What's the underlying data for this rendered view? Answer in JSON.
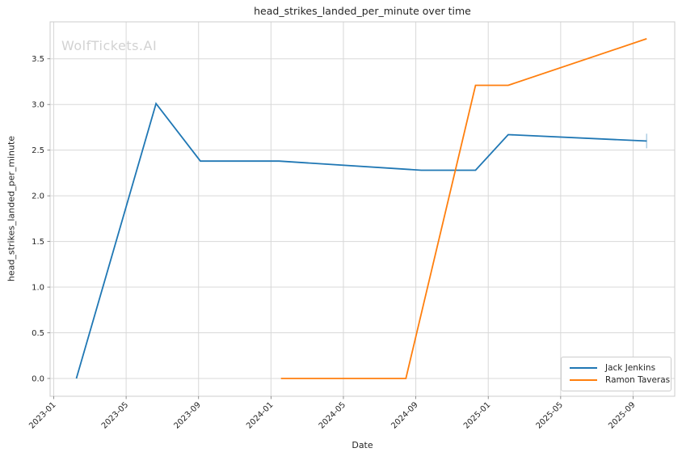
{
  "header": {
    "title": "head_strikes_landed_per_minute over time"
  },
  "watermark": {
    "text": "WolfTickets.AI"
  },
  "axes": {
    "xlabel": "Date",
    "ylabel": "head_strikes_landed_per_minute"
  },
  "legend": {
    "items": [
      {
        "label": "Jack Jenkins",
        "color": "#1f77b4"
      },
      {
        "label": "Ramon Taveras",
        "color": "#ff7f0e"
      }
    ]
  },
  "colors": {
    "grid": "#d8d8d8",
    "spine": "#cccccc",
    "tick": "#767676",
    "text": "#262626",
    "errorbar": "rgba(31,119,180,0.35)"
  },
  "chart_data": {
    "type": "line",
    "title": "head_strikes_landed_per_minute over time",
    "xlabel": "Date",
    "ylabel": "head_strikes_landed_per_minute",
    "grid": true,
    "legend_position": "lower right",
    "xlim_months": [
      -0.2,
      34.3
    ],
    "ylim": [
      -0.195,
      3.905
    ],
    "x_ticks": [
      {
        "month": 0,
        "label": "2023-01"
      },
      {
        "month": 4,
        "label": "2023-05"
      },
      {
        "month": 8,
        "label": "2023-09"
      },
      {
        "month": 12,
        "label": "2024-01"
      },
      {
        "month": 16,
        "label": "2024-05"
      },
      {
        "month": 20,
        "label": "2024-09"
      },
      {
        "month": 24,
        "label": "2025-01"
      },
      {
        "month": 28,
        "label": "2025-05"
      },
      {
        "month": 32,
        "label": "2025-09"
      }
    ],
    "y_ticks": [
      {
        "value": 0.0,
        "label": "0.0"
      },
      {
        "value": 0.5,
        "label": "0.5"
      },
      {
        "value": 1.0,
        "label": "1.0"
      },
      {
        "value": 1.5,
        "label": "1.5"
      },
      {
        "value": 2.0,
        "label": "2.0"
      },
      {
        "value": 2.5,
        "label": "2.5"
      },
      {
        "value": 3.0,
        "label": "3.0"
      },
      {
        "value": 3.5,
        "label": "3.5"
      }
    ],
    "series": [
      {
        "name": "Jack Jenkins",
        "color": "#1f77b4",
        "points": [
          {
            "date": "2023-02",
            "month": 1.25,
            "value": 0.0
          },
          {
            "date": "2023-06",
            "month": 5.65,
            "value": 3.01
          },
          {
            "date": "2023-09",
            "month": 8.1,
            "value": 2.38
          },
          {
            "date": "2024-01",
            "month": 12.45,
            "value": 2.38
          },
          {
            "date": "2024-09",
            "month": 20.3,
            "value": 2.28
          },
          {
            "date": "2024-12",
            "month": 23.3,
            "value": 2.28
          },
          {
            "date": "2025-02",
            "month": 25.1,
            "value": 2.67
          },
          {
            "date": "2025-09",
            "month": 32.75,
            "value": 2.6
          }
        ],
        "end_errorbar": {
          "month": 32.75,
          "low": 2.52,
          "high": 2.68
        }
      },
      {
        "name": "Ramon Taveras",
        "color": "#ff7f0e",
        "points": [
          {
            "date": "2024-01",
            "month": 12.55,
            "value": 0.0
          },
          {
            "date": "2024-08",
            "month": 19.45,
            "value": 0.0
          },
          {
            "date": "2024-12",
            "month": 23.3,
            "value": 3.21
          },
          {
            "date": "2025-02",
            "month": 25.1,
            "value": 3.21
          },
          {
            "date": "2025-09",
            "month": 32.75,
            "value": 3.72
          }
        ]
      }
    ]
  }
}
